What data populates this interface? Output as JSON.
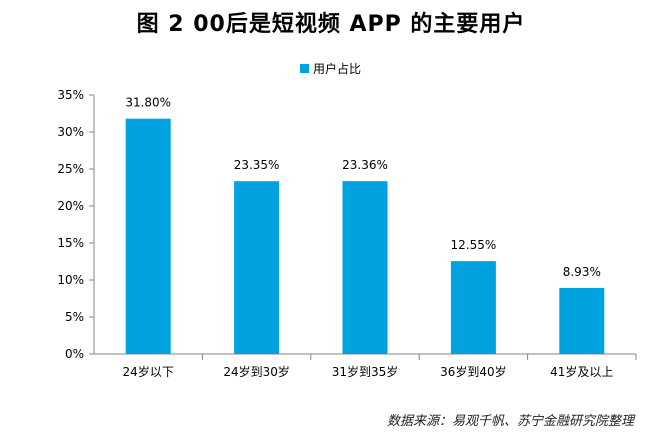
{
  "chart_data": {
    "type": "bar",
    "title": "图 2 00后是短视频 APP 的主要用户",
    "categories": [
      "24岁以下",
      "24岁到30岁",
      "31岁到35岁",
      "36岁到40岁",
      "41岁及以上"
    ],
    "series": [
      {
        "name": "用户占比",
        "values": [
          31.8,
          23.35,
          23.36,
          12.55,
          8.93
        ],
        "color": "#00A2E0"
      }
    ],
    "data_labels": [
      "31.80%",
      "23.35%",
      "23.36%",
      "12.55%",
      "8.93%"
    ],
    "y_ticks": [
      "0%",
      "5%",
      "10%",
      "15%",
      "20%",
      "25%",
      "30%",
      "35%"
    ],
    "ylim": [
      0,
      35
    ],
    "xlabel": "",
    "ylabel": "",
    "grid": false,
    "legend_position": "top-center"
  },
  "source": "数据来源：易观千帆、苏宁金融研究院整理"
}
